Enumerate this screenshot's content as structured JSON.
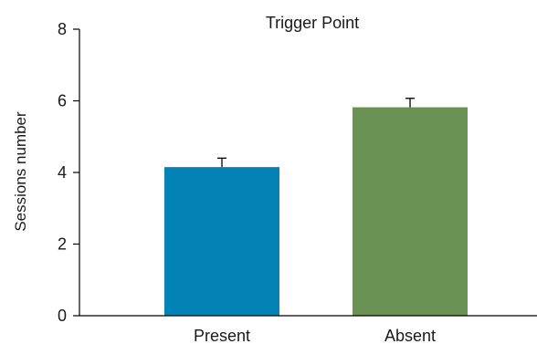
{
  "chart_data": {
    "type": "bar",
    "title": "Trigger Point",
    "xlabel": "",
    "ylabel": "Sessions number",
    "categories": [
      "Present",
      "Absent"
    ],
    "values": [
      4.15,
      5.82
    ],
    "errors": [
      0.25,
      0.25
    ],
    "colors": [
      "#0383b5",
      "#6b9255"
    ],
    "ylim": [
      0,
      8
    ],
    "yticks": [
      0,
      2,
      4,
      6,
      8
    ],
    "ytick_labels": [
      "0",
      "2",
      "4",
      "6",
      "8"
    ],
    "grid": false,
    "legend": "none"
  }
}
